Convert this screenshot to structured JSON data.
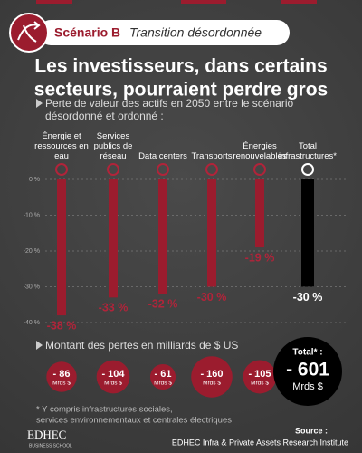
{
  "header": {
    "scenario": "Scénario B",
    "name": "Transition désordonnée"
  },
  "title_lines": [
    "Les investisseurs, dans certains",
    "secteurs, pourraient perdre gros"
  ],
  "subtitle_lines": [
    "Perte de valeur des actifs en 2050 entre le scénario",
    "désordonné et ordonné :"
  ],
  "chart_data": {
    "type": "bar",
    "categories": [
      "Énergie et ressources en eau",
      "Services publics de réseau",
      "Data centers",
      "Transports",
      "Énergies renouvelables",
      "Total infrastructures*"
    ],
    "values": [
      -38,
      -33,
      -32,
      -30,
      -19,
      -30
    ],
    "value_labels": [
      "-38 %",
      "-33 %",
      "-32 %",
      "-30 %",
      "-19 %",
      "-30 %"
    ],
    "colors": [
      "#9b1c2e",
      "#9b1c2e",
      "#9b1c2e",
      "#9b1c2e",
      "#9b1c2e",
      "#000000"
    ],
    "ylim": [
      -40,
      0
    ],
    "yticks": [
      {
        "value": 0,
        "label": "0 %"
      },
      {
        "value": -10,
        "label": "-10 %"
      },
      {
        "value": -20,
        "label": "-20 %"
      },
      {
        "value": -30,
        "label": "-30 %"
      },
      {
        "value": -40,
        "label": "-40 %"
      }
    ],
    "grid": true
  },
  "losses": {
    "title": "Montant des pertes en milliards de $ US",
    "values": [
      -86,
      -104,
      -61,
      -160,
      -105
    ],
    "value_labels": [
      "- 86",
      "- 104",
      "- 61",
      "- 160",
      "- 105"
    ],
    "unit": "Mrds $",
    "total_label": "Total* :",
    "total_value": -601,
    "total_value_label": "- 601"
  },
  "footnote_lines": [
    "* Y compris infrastructures sociales,",
    "services environnementaux et centrales électriques"
  ],
  "source": {
    "label": "Source :",
    "text": "EDHEC Infra & Private Assets Research Institute"
  },
  "logo": {
    "name": "EDHEC",
    "sub": "BUSINESS SCHOOL"
  }
}
